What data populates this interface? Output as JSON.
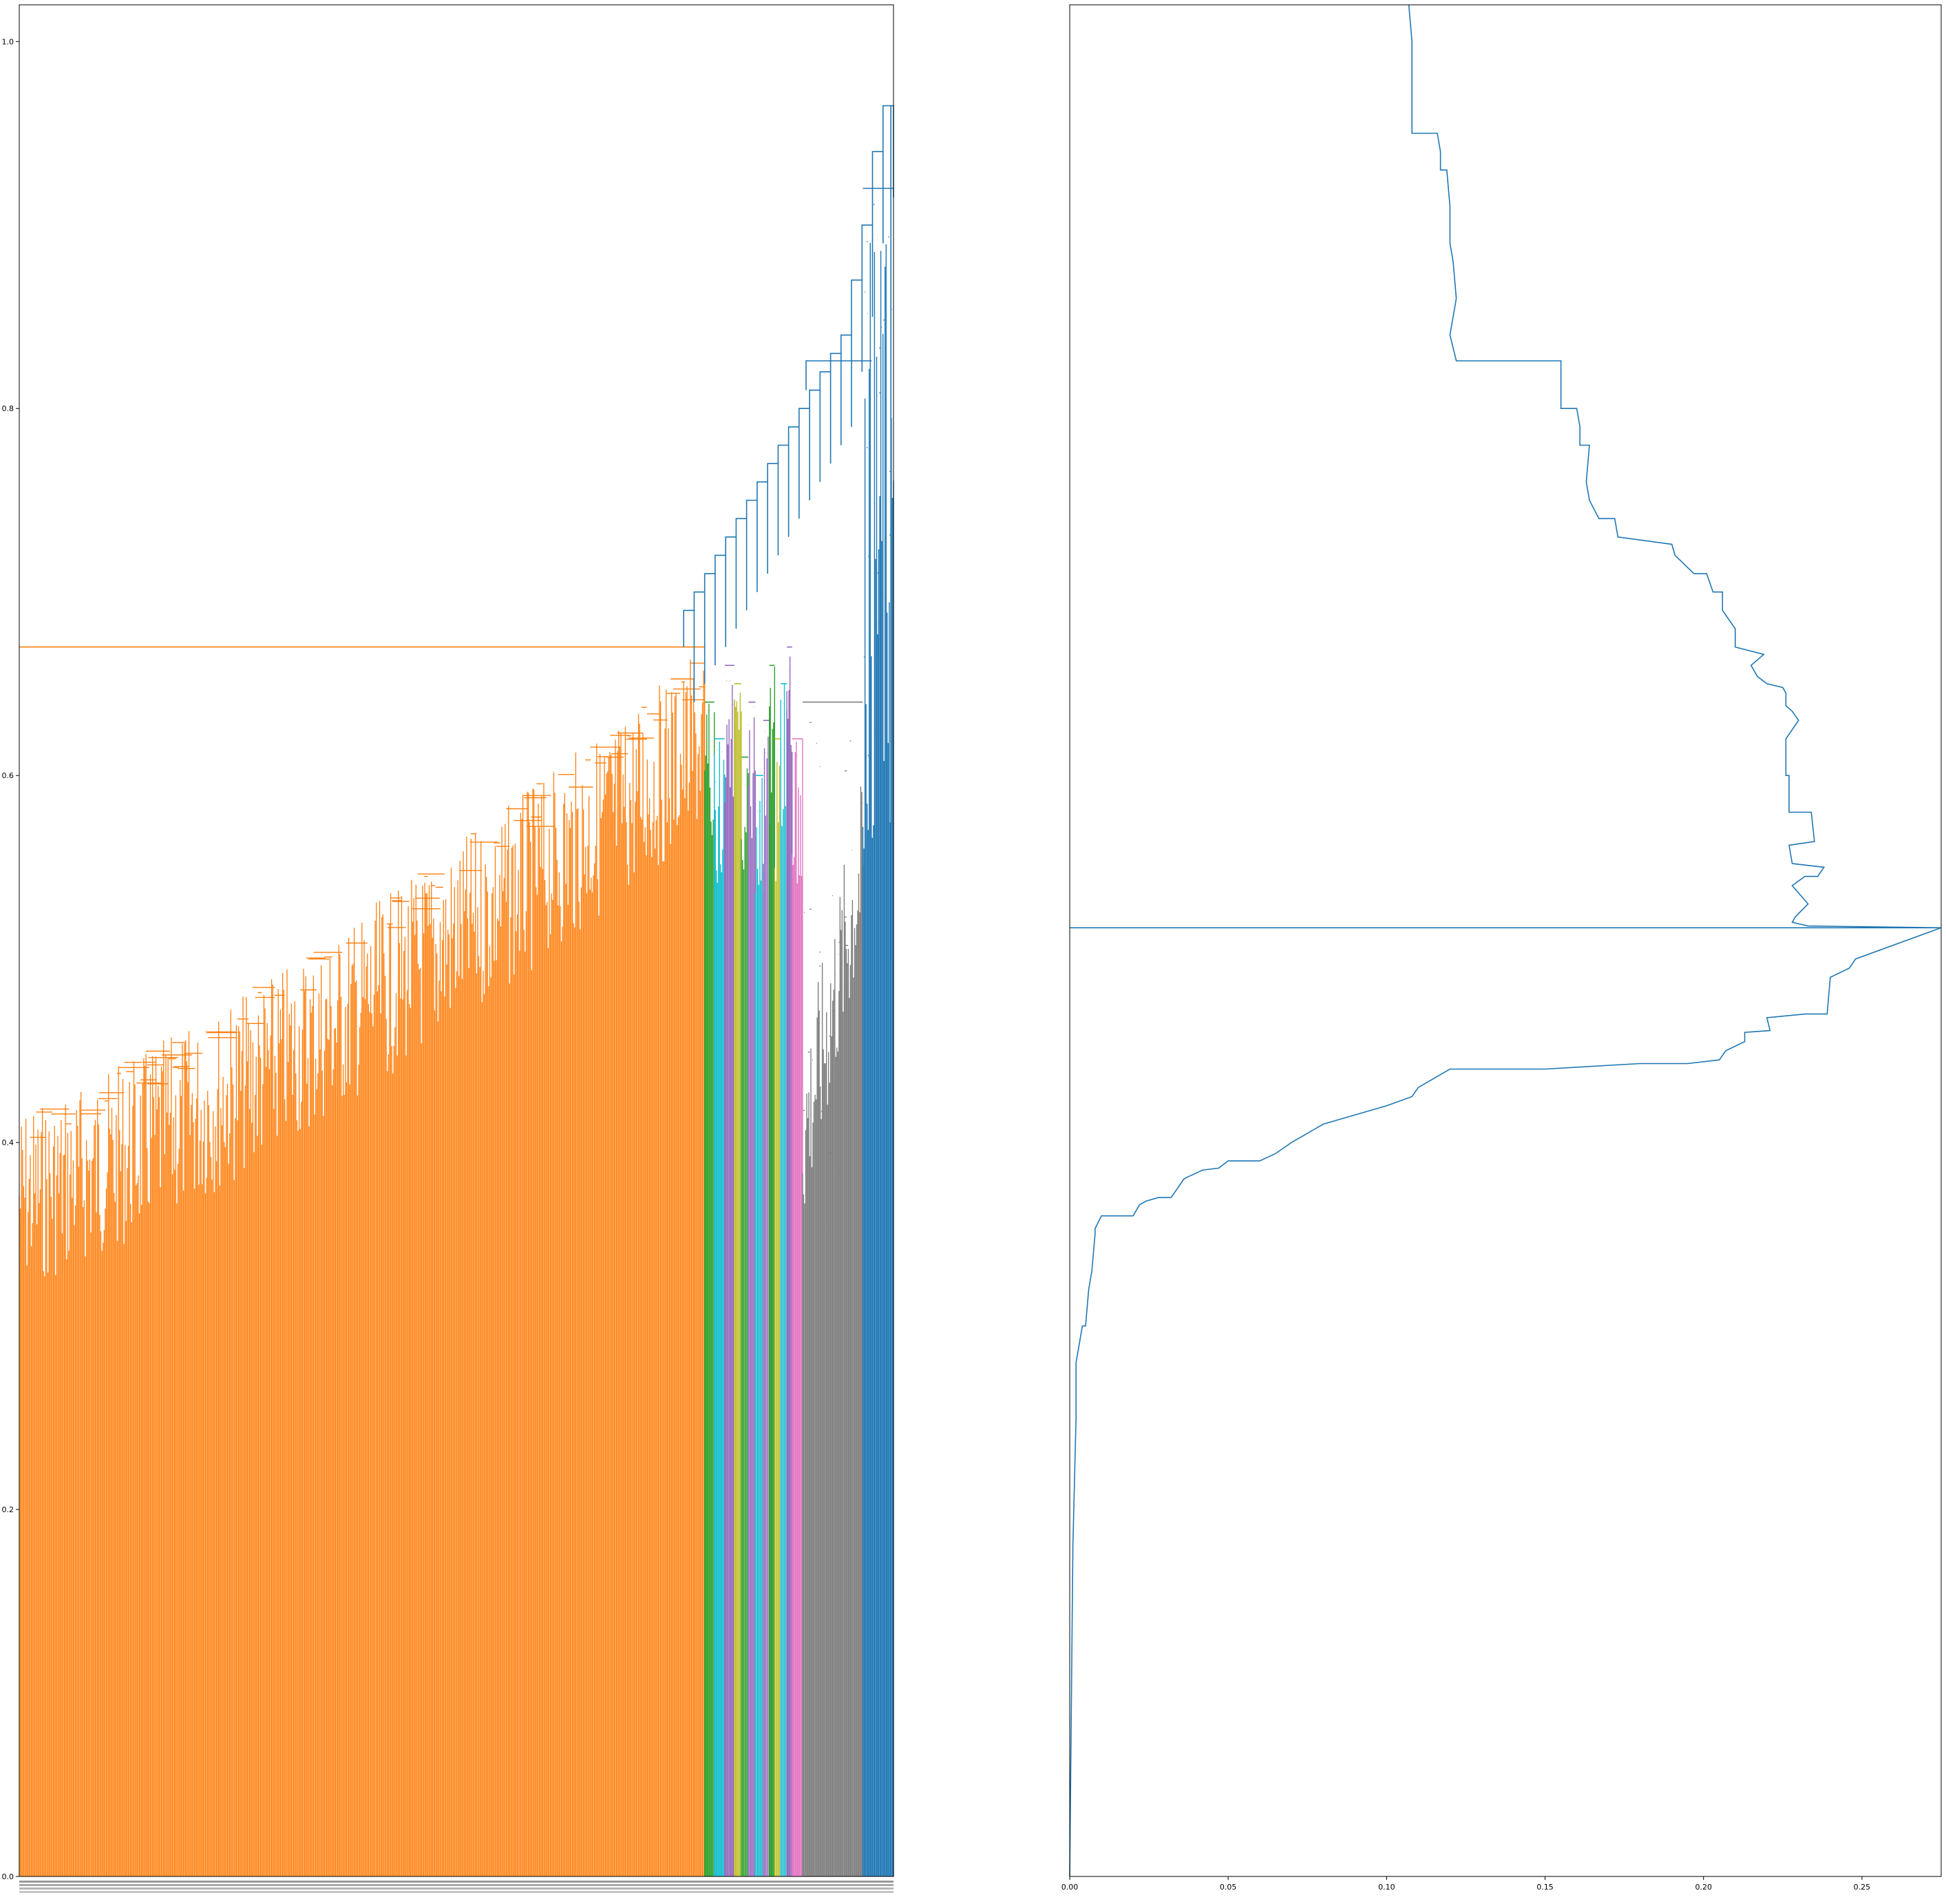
{
  "figure": {
    "background": "#ffffff"
  },
  "chart_data": [
    {
      "type": "dendrogram",
      "title": "",
      "xlabel": "",
      "ylabel": "",
      "ylim": [
        0,
        1.02
      ],
      "yticks": [
        0.0,
        0.2,
        0.4,
        0.6,
        0.8,
        1.0
      ],
      "ytick_labels": [
        "0.0",
        "0.2",
        "0.4",
        "0.6",
        "0.8",
        "1.0"
      ],
      "grid": false,
      "legend": "none",
      "leaf_count_approx": 1400,
      "leaf_labels_note_visible": false,
      "clusters": [
        {
          "color": "#ff7f0e",
          "leaf_range": [
            0.0,
            0.784
          ],
          "base_height": 0.42,
          "top_height": 0.67,
          "stump_heights": [
            0.35,
            0.28,
            0.22,
            0.3,
            0.32
          ]
        },
        {
          "color": "#2ca02c",
          "leaf_range": [
            0.784,
            0.795
          ],
          "top_height": 0.64
        },
        {
          "color": "#17becf",
          "leaf_range": [
            0.795,
            0.807
          ],
          "top_height": 0.62
        },
        {
          "color": "#9467bd",
          "leaf_range": [
            0.807,
            0.818
          ],
          "top_height": 0.66
        },
        {
          "color": "#bcbd22",
          "leaf_range": [
            0.818,
            0.826
          ],
          "top_height": 0.65
        },
        {
          "color": "#2ca02c",
          "leaf_range": [
            0.826,
            0.834
          ],
          "top_height": 0.61
        },
        {
          "color": "#9467bd",
          "leaf_range": [
            0.834,
            0.842
          ],
          "top_height": 0.64
        },
        {
          "color": "#17becf",
          "leaf_range": [
            0.842,
            0.851
          ],
          "top_height": 0.6
        },
        {
          "color": "#9467bd",
          "leaf_range": [
            0.851,
            0.858
          ],
          "top_height": 0.63
        },
        {
          "color": "#2ca02c",
          "leaf_range": [
            0.858,
            0.864
          ],
          "top_height": 0.66
        },
        {
          "color": "#bcbd22",
          "leaf_range": [
            0.864,
            0.871
          ],
          "top_height": 0.62
        },
        {
          "color": "#17becf",
          "leaf_range": [
            0.871,
            0.878
          ],
          "top_height": 0.65
        },
        {
          "color": "#9467bd",
          "leaf_range": [
            0.878,
            0.884
          ],
          "top_height": 0.67
        },
        {
          "color": "#e377c2",
          "leaf_range": [
            0.884,
            0.896
          ],
          "top_height": 0.62
        },
        {
          "color": "#7f7f7f",
          "leaf_range": [
            0.896,
            0.965
          ],
          "top_height": 0.64
        },
        {
          "color": "#1f77b4",
          "leaf_range": [
            0.965,
            1.0
          ],
          "top_height": 0.92
        }
      ],
      "link_color_above_threshold": "#1f77b4",
      "root_height": 0.965,
      "upper_merge_heights": [
        0.69,
        0.7,
        0.71,
        0.72,
        0.73,
        0.74,
        0.75,
        0.76,
        0.77,
        0.78,
        0.79,
        0.8,
        0.81,
        0.82,
        0.83,
        0.84,
        0.87,
        0.9,
        0.94,
        0.965
      ]
    },
    {
      "type": "line",
      "title": "",
      "xlabel": "",
      "ylabel": "",
      "xlim": [
        0.0,
        0.275
      ],
      "ylim": [
        0.0,
        1.02
      ],
      "xticks": [
        0.0,
        0.05,
        0.1,
        0.15,
        0.2,
        0.25
      ],
      "xtick_labels": [
        "0.00",
        "0.05",
        "0.10",
        "0.15",
        "0.20",
        "0.25"
      ],
      "yticks_shown": false,
      "grid": false,
      "legend": "none",
      "color": "#1f77b4",
      "orientation": "x is density, y is distance threshold",
      "series": [
        {
          "name": "",
          "x": [
            0.0,
            0.001,
            0.002,
            0.002,
            0.004,
            0.005,
            0.006,
            0.007,
            0.008,
            0.008,
            0.01,
            0.02,
            0.021,
            0.022,
            0.024,
            0.028,
            0.032,
            0.036,
            0.037,
            0.042,
            0.047,
            0.05,
            0.055,
            0.06,
            0.065,
            0.07,
            0.075,
            0.08,
            0.09,
            0.1,
            0.108,
            0.11,
            0.12,
            0.13,
            0.15,
            0.18,
            0.195,
            0.205,
            0.207,
            0.213,
            0.213,
            0.221,
            0.22,
            0.232,
            0.239,
            0.24,
            0.246,
            0.248,
            0.275,
            0.0,
            0.275,
            0.233,
            0.228,
            0.229,
            0.233,
            0.228,
            0.232,
            0.236,
            0.238,
            0.228,
            0.227,
            0.235,
            0.234,
            0.227,
            0.227,
            0.226,
            0.226,
            0.23,
            0.228,
            0.226,
            0.226,
            0.226,
            0.225,
            0.22,
            0.217,
            0.215,
            0.219,
            0.21,
            0.21,
            0.206,
            0.206,
            0.203,
            0.201,
            0.197,
            0.191,
            0.19,
            0.173,
            0.172,
            0.167,
            0.164,
            0.163,
            0.164,
            0.161,
            0.161,
            0.16,
            0.155,
            0.155,
            0.155,
            0.122,
            0.12,
            0.122,
            0.121,
            0.12,
            0.12,
            0.12,
            0.119,
            0.117,
            0.117,
            0.116,
            0.108,
            0.108,
            0.107
          ],
          "y": [
            0.0,
            0.18,
            0.25,
            0.28,
            0.3,
            0.3,
            0.32,
            0.33,
            0.35,
            0.353,
            0.36,
            0.36,
            0.363,
            0.366,
            0.368,
            0.37,
            0.37,
            0.38,
            0.381,
            0.385,
            0.386,
            0.39,
            0.39,
            0.39,
            0.394,
            0.4,
            0.405,
            0.41,
            0.415,
            0.42,
            0.425,
            0.43,
            0.44,
            0.44,
            0.44,
            0.443,
            0.443,
            0.445,
            0.45,
            0.455,
            0.46,
            0.461,
            0.468,
            0.47,
            0.47,
            0.49,
            0.495,
            0.5,
            0.517,
            0.517,
            0.517,
            0.518,
            0.52,
            0.523,
            0.53,
            0.54,
            0.545,
            0.545,
            0.55,
            0.552,
            0.562,
            0.564,
            0.58,
            0.58,
            0.6,
            0.6,
            0.62,
            0.63,
            0.635,
            0.638,
            0.64,
            0.645,
            0.648,
            0.65,
            0.654,
            0.66,
            0.666,
            0.67,
            0.68,
            0.69,
            0.7,
            0.7,
            0.71,
            0.71,
            0.72,
            0.726,
            0.73,
            0.74,
            0.74,
            0.75,
            0.76,
            0.78,
            0.78,
            0.79,
            0.8,
            0.8,
            0.82,
            0.826,
            0.826,
            0.84,
            0.86,
            0.88,
            0.89,
            0.9,
            0.91,
            0.93,
            0.93,
            0.94,
            0.95,
            0.95,
            1.0,
            1.02
          ]
        }
      ]
    }
  ]
}
